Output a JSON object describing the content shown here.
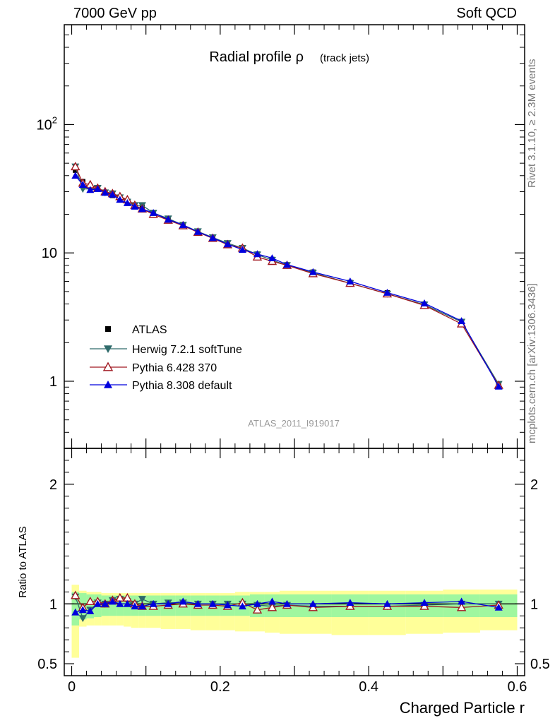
{
  "header": {
    "left": "7000 GeV pp",
    "right": "Soft QCD"
  },
  "side_labels": {
    "rivet": "Rivet 3.1.10, ≥ 2.3M events",
    "site": "mcplots.cern.ch [arXiv:1306.3436]"
  },
  "chart_data": [
    {
      "type": "line",
      "title": "Radial profile ρ",
      "title_suffix": "(track jets)",
      "watermark": "ATLAS_2011_I919017",
      "yscale": "log",
      "xlim": [
        -0.01,
        0.61
      ],
      "ylim": [
        0.3,
        600
      ],
      "y_ticks": [
        {
          "value": 1,
          "label": "1"
        },
        {
          "value": 10,
          "label": "10"
        },
        {
          "value": 100,
          "label": "10",
          "sup": "2"
        }
      ],
      "grid": false,
      "legend_position": "middle-left",
      "x": [
        0.005,
        0.015,
        0.025,
        0.035,
        0.045,
        0.055,
        0.065,
        0.075,
        0.085,
        0.095,
        0.11,
        0.13,
        0.15,
        0.17,
        0.19,
        0.21,
        0.23,
        0.25,
        0.27,
        0.29,
        0.325,
        0.375,
        0.425,
        0.475,
        0.525,
        0.575
      ],
      "series": [
        {
          "name": "ATLAS",
          "color": "#000000",
          "marker": "square",
          "values": [
            44,
            36,
            33,
            31.5,
            29.5,
            28,
            26,
            24.5,
            23.5,
            22.5,
            20.5,
            18.2,
            16.3,
            14.6,
            13.1,
            11.8,
            10.8,
            9.8,
            8.9,
            8.1,
            7.1,
            5.9,
            4.9,
            4.0,
            2.9,
            0.94
          ]
        },
        {
          "name": "Herwig 7.2.1 softTune",
          "color": "#2f6b6b",
          "marker": "triangle-down",
          "values": [
            47,
            31.5,
            31.5,
            32,
            29.5,
            29,
            27,
            25,
            23.5,
            23.5,
            20.5,
            18.5,
            16.5,
            14.7,
            13.2,
            11.9,
            10.9,
            9.7,
            8.8,
            8.0,
            7.0,
            5.8,
            4.8,
            3.95,
            2.9,
            0.95
          ]
        },
        {
          "name": "Pythia 6.428 370",
          "color": "#a01820",
          "marker": "triangle-up-open",
          "values": [
            47,
            35,
            34,
            32,
            30,
            29,
            27.5,
            26,
            23.5,
            22,
            20,
            18,
            16.3,
            14.5,
            13,
            11.6,
            10.9,
            9.3,
            8.6,
            8.0,
            6.9,
            5.8,
            4.8,
            3.9,
            2.8,
            0.93
          ]
        },
        {
          "name": "Pythia 8.308 default",
          "color": "#0000dd",
          "marker": "triangle-up",
          "values": [
            40,
            34,
            31,
            31.5,
            29.5,
            28.5,
            26,
            24.5,
            23,
            22,
            20.5,
            18.2,
            16.5,
            14.6,
            13.1,
            11.7,
            10.6,
            9.8,
            9.1,
            8.1,
            7.1,
            6.0,
            4.9,
            4.05,
            2.95,
            0.91
          ]
        }
      ]
    },
    {
      "type": "line",
      "ylabel": "Ratio to ATLAS",
      "xlabel": "Charged Particle r",
      "xlim": [
        -0.01,
        0.61
      ],
      "ylim": [
        0.4,
        2.3
      ],
      "x_ticks": [
        {
          "value": 0,
          "label": "0"
        },
        {
          "value": 0.2,
          "label": "0.2"
        },
        {
          "value": 0.4,
          "label": "0.4"
        },
        {
          "value": 0.6,
          "label": "0.6"
        }
      ],
      "y_ticks": [
        {
          "value": 0.5,
          "label": "0.5"
        },
        {
          "value": 1,
          "label": "1"
        },
        {
          "value": 2,
          "label": "2"
        }
      ],
      "bin_edges": [
        0,
        0.01,
        0.02,
        0.03,
        0.04,
        0.05,
        0.06,
        0.07,
        0.08,
        0.09,
        0.1,
        0.12,
        0.14,
        0.16,
        0.18,
        0.2,
        0.22,
        0.24,
        0.26,
        0.28,
        0.3,
        0.35,
        0.4,
        0.45,
        0.5,
        0.55,
        0.6
      ],
      "bands": {
        "stat_color": "#9ff79f",
        "total_color": "#ffff99",
        "stat_lo": [
          0.82,
          0.87,
          0.88,
          0.89,
          0.9,
          0.9,
          0.9,
          0.9,
          0.9,
          0.9,
          0.9,
          0.9,
          0.9,
          0.9,
          0.9,
          0.9,
          0.9,
          0.89,
          0.89,
          0.89,
          0.89,
          0.89,
          0.89,
          0.89,
          0.89,
          0.89
        ],
        "stat_hi": [
          1.1,
          1.09,
          1.08,
          1.08,
          1.07,
          1.07,
          1.07,
          1.07,
          1.07,
          1.07,
          1.07,
          1.07,
          1.07,
          1.07,
          1.07,
          1.07,
          1.07,
          1.08,
          1.08,
          1.08,
          1.08,
          1.08,
          1.08,
          1.08,
          1.08,
          1.08
        ],
        "total_lo": [
          0.55,
          0.81,
          0.82,
          0.82,
          0.82,
          0.82,
          0.82,
          0.81,
          0.8,
          0.8,
          0.8,
          0.79,
          0.79,
          0.78,
          0.78,
          0.78,
          0.77,
          0.77,
          0.76,
          0.75,
          0.75,
          0.74,
          0.74,
          0.75,
          0.76,
          0.78
        ],
        "total_hi": [
          1.16,
          1.11,
          1.1,
          1.1,
          1.09,
          1.09,
          1.09,
          1.09,
          1.09,
          1.09,
          1.09,
          1.09,
          1.09,
          1.09,
          1.09,
          1.09,
          1.1,
          1.1,
          1.1,
          1.11,
          1.11,
          1.11,
          1.11,
          1.11,
          1.12,
          1.12
        ]
      },
      "series": [
        {
          "name": "Herwig 7.2.1 softTune",
          "color": "#2f6b6b",
          "marker": "triangle-down",
          "values": [
            1.06,
            0.88,
            0.95,
            1.01,
            1.0,
            1.03,
            1.04,
            1.02,
            1.0,
            1.04,
            1.0,
            1.01,
            1.01,
            1.0,
            1.0,
            1.0,
            1.0,
            0.99,
            0.98,
            0.99,
            0.98,
            0.98,
            0.98,
            0.99,
            1.0,
            1.0
          ]
        },
        {
          "name": "Pythia 6.428 370",
          "color": "#a01820",
          "marker": "triangle-up-open",
          "values": [
            1.07,
            0.97,
            1.02,
            1.02,
            1.0,
            1.03,
            1.05,
            1.05,
            1.0,
            0.98,
            0.98,
            0.99,
            1.0,
            0.99,
            0.99,
            0.98,
            1.01,
            0.95,
            0.97,
            0.99,
            0.97,
            0.98,
            0.98,
            0.98,
            0.97,
            0.99
          ]
        },
        {
          "name": "Pythia 8.308 default",
          "color": "#0000dd",
          "marker": "triangle-up",
          "values": [
            0.93,
            0.95,
            0.94,
            1.0,
            1.0,
            1.02,
            1.0,
            1.0,
            0.98,
            0.98,
            1.0,
            1.0,
            1.02,
            1.0,
            1.0,
            0.99,
            0.98,
            1.0,
            1.02,
            1.0,
            1.0,
            1.01,
            1.0,
            1.01,
            1.02,
            0.97
          ]
        }
      ]
    }
  ]
}
